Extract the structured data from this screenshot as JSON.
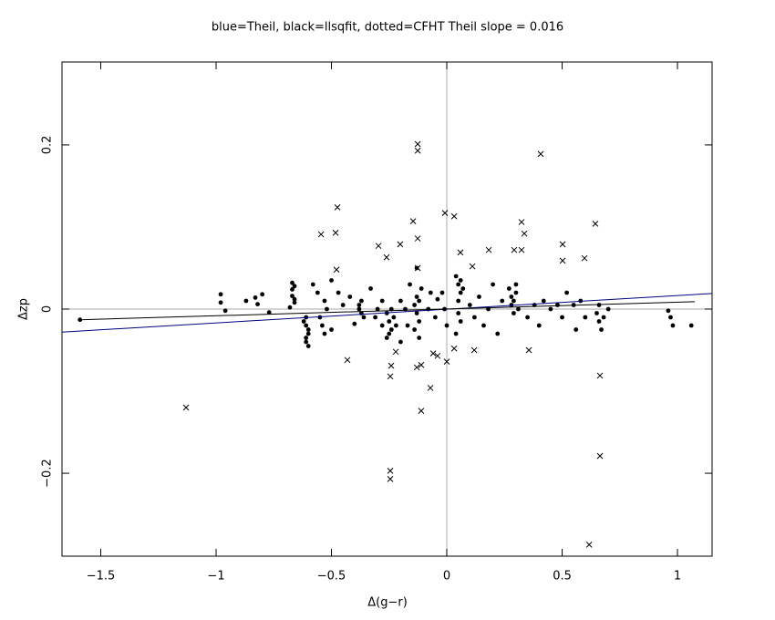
{
  "chart_data": {
    "type": "scatter",
    "title": "blue=Theil, black=llsqfit, dotted=CFHT   Theil slope =  0.016",
    "x_label": "Δ(g−r)",
    "y_label": "Δzp",
    "xlim": [
      -1.668,
      1.15
    ],
    "ylim": [
      -0.301,
      0.301
    ],
    "xticks": [
      {
        "value": -1.5,
        "label": "−1.5"
      },
      {
        "value": -1,
        "label": "−1"
      },
      {
        "value": -0.5,
        "label": "−0.5"
      },
      0,
      0.5,
      1
    ],
    "yticks": [
      {
        "value": -0.2,
        "label": "−0.2"
      },
      0,
      0.2
    ],
    "series": [
      {
        "marker": "dot",
        "color": "#000000",
        "x": [
          -1.59,
          -0.98,
          -0.98,
          -0.96,
          -0.87,
          -0.83,
          -0.82,
          -0.8,
          -0.77,
          -0.67,
          -0.67,
          -0.67,
          -0.66,
          -0.68,
          -0.66,
          -0.66,
          -0.61,
          -0.61,
          -0.6,
          -0.61,
          -0.6,
          -0.62,
          -0.6,
          -0.61,
          -0.58,
          -0.56,
          -0.55,
          -0.54,
          -0.53,
          -0.53,
          -0.52,
          -0.5,
          -0.5,
          -0.47,
          -0.45,
          -0.42,
          -0.4,
          -0.38,
          -0.37,
          -0.38,
          -0.36,
          -0.37,
          -0.33,
          -0.31,
          -0.3,
          -0.28,
          -0.28,
          -0.26,
          -0.25,
          -0.24,
          -0.26,
          -0.23,
          -0.22,
          -0.24,
          -0.25,
          -0.2,
          -0.2,
          -0.18,
          -0.17,
          -0.16,
          -0.14,
          -0.13,
          -0.12,
          -0.13,
          -0.12,
          -0.11,
          -0.14,
          -0.12,
          -0.13,
          -0.08,
          -0.07,
          -0.05,
          -0.04,
          -0.02,
          -0.01,
          0,
          0.04,
          0.05,
          0.06,
          0.05,
          0.06,
          0.07,
          0.05,
          0.04,
          0.06,
          0.1,
          0.12,
          0.14,
          0.16,
          0.18,
          0.2,
          0.22,
          0.24,
          0.27,
          0.28,
          0.29,
          0.28,
          0.3,
          0.29,
          0.31,
          0.3,
          0.35,
          0.38,
          0.4,
          0.42,
          0.45,
          0.48,
          0.5,
          0.52,
          0.55,
          0.56,
          0.58,
          0.6,
          0.65,
          0.66,
          0.67,
          0.66,
          0.68,
          0.7,
          0.96,
          0.97,
          0.98,
          1.06
        ],
        "values": [
          -0.013,
          0.018,
          0.008,
          -0.002,
          0.01,
          0.014,
          0.006,
          0.018,
          -0.004,
          0.032,
          0.024,
          0.016,
          0.008,
          0.002,
          0.028,
          0.012,
          -0.01,
          -0.02,
          -0.03,
          -0.04,
          -0.045,
          -0.015,
          -0.025,
          -0.035,
          0.03,
          0.02,
          -0.01,
          -0.02,
          -0.03,
          0.01,
          0,
          0.035,
          -0.025,
          0.02,
          0.005,
          0.015,
          -0.018,
          0.005,
          -0.005,
          0,
          -0.01,
          0.01,
          0.025,
          -0.01,
          0,
          0.01,
          -0.02,
          -0.005,
          -0.015,
          -0.025,
          -0.035,
          -0.01,
          -0.02,
          0,
          -0.03,
          0.01,
          -0.04,
          0,
          -0.02,
          0.03,
          0.005,
          0.015,
          0.01,
          -0.005,
          -0.015,
          0.025,
          -0.025,
          -0.035,
          0.05,
          0,
          0.02,
          -0.01,
          0.012,
          0.02,
          0,
          -0.02,
          0.04,
          0.03,
          0.02,
          0.01,
          0.035,
          0.025,
          -0.005,
          -0.03,
          -0.015,
          0.005,
          -0.01,
          0.015,
          -0.02,
          0,
          0.03,
          -0.03,
          0.01,
          0.025,
          0.015,
          0.01,
          0.005,
          0.02,
          -0.005,
          0,
          0.03,
          -0.01,
          0.005,
          -0.02,
          0.01,
          0,
          0.005,
          -0.01,
          0.02,
          0.005,
          -0.025,
          0.01,
          -0.01,
          -0.005,
          -0.015,
          -0.025,
          0.005,
          -0.01,
          0,
          -0.002,
          -0.01,
          -0.02,
          -0.02
        ]
      },
      {
        "marker": "cross",
        "color": "#000000",
        "x": [
          -0.545,
          -0.474,
          -0.482,
          -0.478,
          -0.431,
          -0.296,
          -0.261,
          -0.202,
          -0.146,
          -0.126,
          -0.126,
          -0.126,
          -0.126,
          -0.241,
          -0.245,
          -0.221,
          -0.245,
          -0.245,
          -0.13,
          -0.111,
          -0.111,
          -0.071,
          -0.008,
          0.032,
          -0.059,
          -0.04,
          0,
          0.032,
          0.059,
          0.111,
          0.119,
          0.182,
          0.292,
          0.324,
          0.324,
          0.336,
          0.356,
          0.407,
          0.502,
          0.502,
          0.597,
          0.617,
          0.644,
          0.664,
          0.664,
          -1.13
        ],
        "values": [
          0.091,
          0.124,
          0.093,
          0.048,
          -0.062,
          0.077,
          0.063,
          0.079,
          0.107,
          0.201,
          0.193,
          0.086,
          0.05,
          -0.069,
          -0.082,
          -0.052,
          -0.197,
          -0.207,
          -0.071,
          -0.068,
          -0.124,
          -0.096,
          0.117,
          0.113,
          -0.054,
          -0.057,
          -0.064,
          -0.048,
          0.069,
          0.052,
          -0.05,
          0.072,
          0.072,
          0.106,
          0.072,
          0.092,
          -0.05,
          0.189,
          0.079,
          0.059,
          0.062,
          -0.287,
          0.104,
          -0.081,
          -0.179,
          -0.12
        ]
      }
    ],
    "lines": [
      {
        "color": "#000080",
        "x": [
          -1.668,
          1.15
        ],
        "values": [
          -0.028,
          0.019
        ]
      },
      {
        "color": "#000000",
        "x": [
          -1.59,
          1.075
        ],
        "values": [
          -0.013,
          0.009
        ]
      }
    ]
  }
}
